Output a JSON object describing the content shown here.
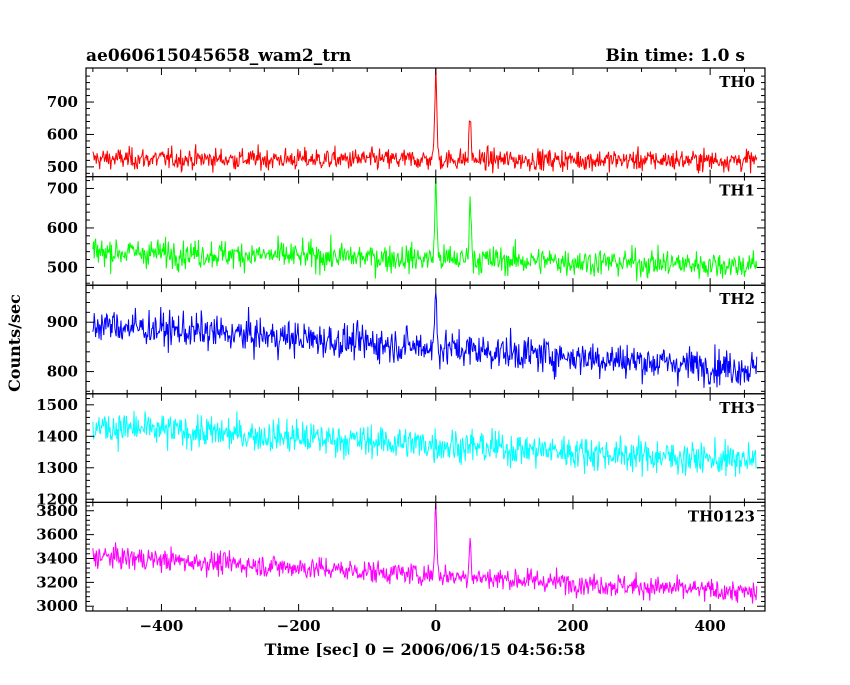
{
  "header": {
    "source_title": "ae060615045658_wam2_trn",
    "bin_time": "Bin time: 1.0 s"
  },
  "chart_data": {
    "type": "line",
    "xlabel": "Time [sec] 0 = 2006/06/15 04:56:58",
    "ylabel": "Counts/sec",
    "xlim": [
      -510,
      480
    ],
    "x_ticks": [
      -400,
      -200,
      0,
      200,
      400
    ],
    "x_tick_labels": [
      "−400",
      "−200",
      "0",
      "200",
      "400"
    ],
    "x_range": [
      -500,
      468
    ],
    "x_step": 1,
    "grid": false,
    "series": [
      {
        "name": "TH0",
        "color": "#ff0000",
        "ylim": [
          470,
          805
        ],
        "yticks": [
          500,
          600,
          700
        ],
        "baseline_start": 525,
        "baseline_end": 520,
        "noise": 28,
        "spikes": [
          {
            "x": 0,
            "peak": 800,
            "width": 1.5
          },
          {
            "x": 50,
            "peak": 650,
            "width": 1.5
          }
        ]
      },
      {
        "name": "TH1",
        "color": "#00ff00",
        "ylim": [
          455,
          730
        ],
        "yticks": [
          500,
          600,
          700
        ],
        "baseline_start": 540,
        "baseline_end": 505,
        "noise": 30,
        "spikes": [
          {
            "x": 0,
            "peak": 720,
            "width": 1.5
          },
          {
            "x": 50,
            "peak": 680,
            "width": 1.5
          }
        ]
      },
      {
        "name": "TH2",
        "color": "#0000ff",
        "ylim": [
          755,
          975
        ],
        "yticks": [
          800,
          900
        ],
        "baseline_start": 895,
        "baseline_end": 805,
        "noise": 30,
        "spikes": [
          {
            "x": 0,
            "peak": 960,
            "width": 1.5
          }
        ]
      },
      {
        "name": "TH3",
        "color": "#00ffff",
        "ylim": [
          1190,
          1535
        ],
        "yticks": [
          1200,
          1300,
          1400,
          1500
        ],
        "baseline_start": 1430,
        "baseline_end": 1320,
        "noise": 45,
        "spikes": []
      },
      {
        "name": "TH0123",
        "color": "#ff00ff",
        "ylim": [
          2960,
          3870
        ],
        "yticks": [
          3000,
          3200,
          3400,
          3600,
          3800
        ],
        "baseline_start": 3420,
        "baseline_end": 3110,
        "noise": 80,
        "spikes": [
          {
            "x": 0,
            "peak": 3860,
            "width": 1.5
          },
          {
            "x": 50,
            "peak": 3560,
            "width": 1.5
          }
        ]
      }
    ]
  }
}
